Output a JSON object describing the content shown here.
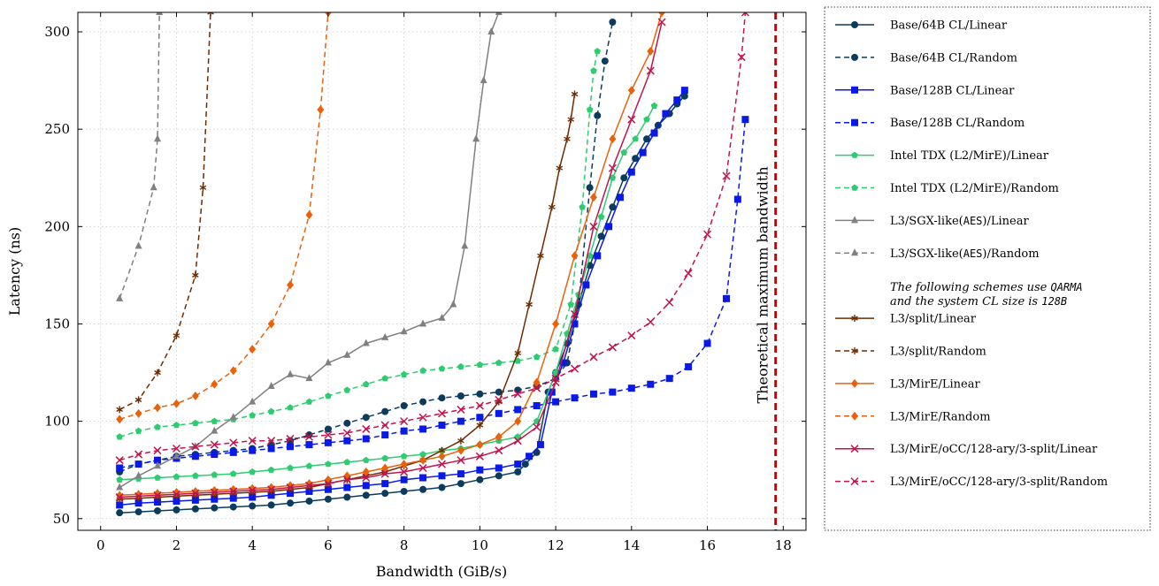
{
  "chart_data": {
    "type": "line",
    "xlabel": "Bandwidth (GiB/s)",
    "ylabel": "Latency (ns)",
    "xlim": [
      -0.6,
      18.6
    ],
    "ylim": [
      44,
      310
    ],
    "xticks": [
      0,
      2,
      4,
      6,
      8,
      10,
      12,
      14,
      16,
      18
    ],
    "yticks": [
      50,
      100,
      150,
      200,
      250,
      300
    ],
    "grid": true,
    "legend_position": "right-outside",
    "max_bandwidth_line": {
      "x": 17.8,
      "label": "Theoretical maximum bandwidth",
      "color": "#cc0000"
    },
    "legend_note": [
      "The following schemes use QARMA",
      "and the system CL size is 128B"
    ],
    "series": [
      {
        "name": "Base/64B CL/Linear",
        "color": "#0b3c5d",
        "dash": "solid",
        "marker": "circle",
        "x": [
          0.5,
          1,
          1.5,
          2,
          2.5,
          3,
          3.5,
          4,
          4.5,
          5,
          5.5,
          6,
          6.5,
          7,
          7.5,
          8,
          8.5,
          9,
          9.5,
          10,
          10.5,
          11,
          11.2,
          11.5,
          11.8,
          12,
          12.3,
          12.6,
          12.9,
          13.2,
          13.5,
          13.8,
          14.1,
          14.4,
          14.7,
          15,
          15.2,
          15.4
        ],
        "y": [
          53,
          53.5,
          54,
          54.5,
          55,
          55.5,
          56,
          56.5,
          57,
          58,
          59,
          60,
          61,
          62,
          63,
          64,
          65,
          66,
          68,
          70,
          72,
          74,
          78,
          84,
          115,
          125,
          140,
          160,
          180,
          195,
          210,
          225,
          235,
          245,
          252,
          258,
          263,
          267
        ]
      },
      {
        "name": "Base/64B CL/Random",
        "color": "#0b3c5d",
        "dash": "dashed",
        "marker": "circle",
        "x": [
          0.5,
          1,
          1.5,
          2,
          2.5,
          3,
          3.5,
          4,
          4.5,
          5,
          5.5,
          6,
          6.5,
          7,
          7.5,
          8,
          8.5,
          9,
          9.5,
          10,
          10.5,
          11,
          11.5,
          12,
          12.3,
          12.6,
          12.9,
          13.1,
          13.3,
          13.5
        ],
        "y": [
          74,
          78,
          80,
          82,
          83,
          84,
          85,
          86,
          88,
          90,
          93,
          96,
          99,
          102,
          105,
          108,
          110,
          112,
          113,
          114,
          115,
          116,
          118,
          122,
          130,
          160,
          220,
          257,
          285,
          305
        ]
      },
      {
        "name": "Base/128B CL/Linear",
        "color": "#0a1ae6",
        "dash": "solid",
        "marker": "square",
        "x": [
          0.5,
          1,
          1.5,
          2,
          2.5,
          3,
          3.5,
          4,
          4.5,
          5,
          5.5,
          6,
          6.5,
          7,
          7.5,
          8,
          8.5,
          9,
          9.5,
          10,
          10.5,
          11,
          11.3,
          11.6,
          11.9,
          12.2,
          12.5,
          12.8,
          13.1,
          13.4,
          13.7,
          14,
          14.3,
          14.6,
          14.9,
          15.2,
          15.4
        ],
        "y": [
          57,
          58,
          58.5,
          59,
          59.5,
          60,
          60.5,
          61,
          62,
          63,
          64,
          65,
          66,
          67,
          68,
          70,
          71,
          72,
          73,
          75,
          76,
          78,
          82,
          88,
          115,
          130,
          150,
          170,
          185,
          200,
          215,
          228,
          238,
          248,
          258,
          265,
          270
        ]
      },
      {
        "name": "Base/128B CL/Random",
        "color": "#0a1ae6",
        "dash": "dashed",
        "marker": "square",
        "x": [
          0.5,
          1,
          1.5,
          2,
          2.5,
          3,
          3.5,
          4,
          4.5,
          5,
          5.5,
          6,
          6.5,
          7,
          7.5,
          8,
          8.5,
          9,
          9.5,
          10,
          10.5,
          11,
          11.5,
          12,
          12.5,
          13,
          13.5,
          14,
          14.5,
          15,
          15.5,
          16,
          16.5,
          16.8,
          17
        ],
        "y": [
          76,
          78,
          80,
          81,
          82,
          83,
          84,
          85,
          86,
          87,
          88,
          89,
          90,
          91,
          93,
          95,
          96,
          98,
          100,
          102,
          104,
          106,
          108,
          110,
          112,
          114,
          115,
          117,
          119,
          122,
          128,
          140,
          163,
          214,
          255
        ]
      },
      {
        "name": "Intel TDX (L2/MirE)/Linear",
        "color": "#2ecc71",
        "dash": "solid",
        "marker": "pentagon",
        "x": [
          0.5,
          1,
          1.5,
          2,
          2.5,
          3,
          3.5,
          4,
          4.5,
          5,
          5.5,
          6,
          6.5,
          7,
          7.5,
          8,
          8.5,
          9,
          9.5,
          10,
          10.5,
          11,
          11.5,
          12,
          12.3,
          12.6,
          12.9,
          13.2,
          13.5,
          13.8,
          14.1,
          14.4,
          14.6
        ],
        "y": [
          70,
          70.5,
          71,
          71.5,
          72,
          72.5,
          73,
          74,
          75,
          76,
          77,
          78,
          79,
          80,
          81,
          82,
          83,
          85,
          86,
          88,
          90,
          92,
          100,
          125,
          145,
          165,
          185,
          205,
          225,
          238,
          245,
          255,
          262
        ]
      },
      {
        "name": "Intel TDX (L2/MirE)/Random",
        "color": "#2ecc71",
        "dash": "dashed",
        "marker": "pentagon",
        "x": [
          0.5,
          1,
          1.5,
          2,
          2.5,
          3,
          3.5,
          4,
          4.5,
          5,
          5.5,
          6,
          6.5,
          7,
          7.5,
          8,
          8.5,
          9,
          9.5,
          10,
          10.5,
          11,
          11.5,
          12,
          12.4,
          12.7,
          12.9,
          13,
          13.1
        ],
        "y": [
          92,
          95,
          97,
          98,
          99,
          100,
          101,
          103,
          105,
          107,
          110,
          113,
          116,
          119,
          122,
          124,
          126,
          127,
          128,
          129,
          130,
          131,
          133,
          137,
          160,
          210,
          260,
          280,
          290
        ]
      },
      {
        "name": "L3/SGX-like(AES)/Linear",
        "color": "#808080",
        "dash": "solid",
        "marker": "triangle",
        "x": [
          0.5,
          1,
          1.5,
          2,
          2.5,
          3,
          3.5,
          4,
          4.5,
          5,
          5.5,
          6,
          6.5,
          7,
          7.5,
          8,
          8.5,
          9,
          9.3,
          9.6,
          9.9,
          10.1,
          10.3,
          10.5
        ],
        "y": [
          66,
          72,
          77,
          82,
          87,
          95,
          102,
          110,
          118,
          124,
          122,
          130,
          134,
          140,
          143,
          146,
          150,
          153,
          160,
          190,
          245,
          275,
          300,
          310
        ]
      },
      {
        "name": "L3/SGX-like(AES)/Random",
        "color": "#808080",
        "dash": "dashed",
        "marker": "triangle",
        "x": [
          0.5,
          1,
          1.4,
          1.5,
          1.55
        ],
        "y": [
          163,
          190,
          220,
          245,
          310
        ]
      },
      {
        "name": "L3/split/Linear",
        "color": "#6e2c00",
        "dash": "solid",
        "marker": "asterisk",
        "x": [
          0.5,
          1,
          1.5,
          2,
          2.5,
          3,
          3.5,
          4,
          4.5,
          5,
          5.5,
          6,
          6.5,
          7,
          7.5,
          8,
          8.5,
          9,
          9.5,
          10,
          10.5,
          11,
          11.3,
          11.6,
          11.9,
          12.1,
          12.3,
          12.4,
          12.5
        ],
        "y": [
          60,
          60.5,
          61,
          61.5,
          62,
          62.5,
          63,
          63.5,
          64,
          65,
          66,
          68,
          70,
          72,
          74,
          77,
          80,
          85,
          90,
          98,
          110,
          135,
          160,
          185,
          210,
          230,
          245,
          255,
          268
        ]
      },
      {
        "name": "L3/split/Random",
        "color": "#6e2c00",
        "dash": "dashed",
        "marker": "asterisk",
        "x": [
          0.5,
          1,
          1.5,
          2,
          2.5,
          2.7,
          2.9
        ],
        "y": [
          106,
          111,
          125,
          144,
          175,
          220,
          310
        ]
      },
      {
        "name": "L3/MirE/Linear",
        "color": "#e8620c",
        "dash": "solid",
        "marker": "diamond",
        "x": [
          0.5,
          1,
          1.5,
          2,
          2.5,
          3,
          3.5,
          4,
          4.5,
          5,
          5.5,
          6,
          6.5,
          7,
          7.5,
          8,
          8.5,
          9,
          9.5,
          10,
          10.5,
          11,
          11.5,
          12,
          12.5,
          13,
          13.5,
          14,
          14.5,
          14.8
        ],
        "y": [
          62,
          62.5,
          63,
          63.5,
          64,
          64.5,
          65,
          65.5,
          66,
          67,
          68,
          70,
          72,
          74,
          76,
          78,
          80,
          82,
          85,
          88,
          92,
          100,
          120,
          150,
          185,
          215,
          245,
          270,
          290,
          310
        ]
      },
      {
        "name": "L3/MirE/Random",
        "color": "#e8620c",
        "dash": "dashed",
        "marker": "diamond",
        "x": [
          0.5,
          1,
          1.5,
          2,
          2.5,
          3,
          3.5,
          4,
          4.5,
          5,
          5.5,
          5.8,
          6
        ],
        "y": [
          101,
          104,
          107,
          109,
          113,
          119,
          126,
          137,
          150,
          170,
          206,
          260,
          310
        ]
      },
      {
        "name": "L3/MirE/oCC/128-ary/3-split/Linear",
        "color": "#c0144f",
        "dash": "solid",
        "marker": "cross",
        "x": [
          0.5,
          1,
          1.5,
          2,
          2.5,
          3,
          3.5,
          4,
          4.5,
          5,
          5.5,
          6,
          6.5,
          7,
          7.5,
          8,
          8.5,
          9,
          9.5,
          10,
          10.5,
          11,
          11.5,
          12,
          12.5,
          13,
          13.5,
          14,
          14.5,
          14.8
        ],
        "y": [
          61,
          61.5,
          62,
          62.5,
          63,
          63.5,
          64,
          64.5,
          65,
          66,
          67,
          68,
          70,
          71,
          73,
          74,
          76,
          78,
          80,
          82,
          85,
          90,
          97,
          120,
          155,
          200,
          230,
          255,
          280,
          305
        ]
      },
      {
        "name": "L3/MirE/oCC/128-ary/3-split/Random",
        "color": "#c0144f",
        "dash": "dashed",
        "marker": "cross",
        "x": [
          0.5,
          1,
          1.5,
          2,
          2.5,
          3,
          3.5,
          4,
          4.5,
          5,
          5.5,
          6,
          6.5,
          7,
          7.5,
          8,
          8.5,
          9,
          9.5,
          10,
          10.5,
          11,
          11.5,
          12,
          12.5,
          13,
          13.5,
          14,
          14.5,
          15,
          15.5,
          16,
          16.5,
          16.9,
          17
        ],
        "y": [
          80,
          83,
          85,
          86,
          87,
          88,
          89,
          90,
          90,
          91,
          92,
          93,
          94,
          96,
          98,
          100,
          102,
          104,
          106,
          108,
          111,
          114,
          117,
          122,
          127,
          133,
          138,
          144,
          151,
          161,
          176,
          196,
          226,
          287,
          310
        ]
      }
    ]
  }
}
